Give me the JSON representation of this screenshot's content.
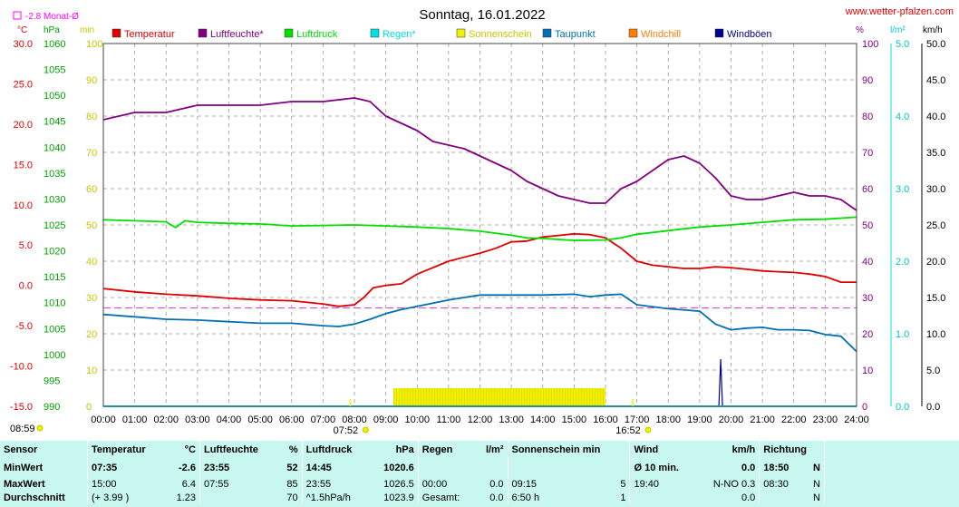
{
  "header": {
    "title": "Sonntag, 16.01.2022",
    "site": "www.wetter-pfalzen.com",
    "monthly_avg_legend": "-2.8 Monat-Ø"
  },
  "units": {
    "temp": "°C",
    "pressure": "hPa",
    "sun": "min",
    "humidity": "%",
    "rain": "l/m²",
    "wind": "km/h"
  },
  "legend": [
    {
      "name": "Temperatur",
      "color": "#e00000"
    },
    {
      "name": "Luftfeuchte*",
      "color": "#800080"
    },
    {
      "name": "Luftdruck",
      "color": "#00e000"
    },
    {
      "name": "Regen*",
      "color": "#00e0e0"
    },
    {
      "name": "Sonnenschein",
      "color": "#f0f000"
    },
    {
      "name": "Taupunkt",
      "color": "#0070b0"
    },
    {
      "name": "Windchill",
      "color": "#ff8000"
    },
    {
      "name": "Windböen",
      "color": "#000090"
    }
  ],
  "chart_data": {
    "type": "line",
    "title": "Sonntag, 16.01.2022",
    "x_ticks": [
      "00:00",
      "01:00",
      "02:00",
      "03:00",
      "04:00",
      "05:00",
      "06:00",
      "07:00",
      "08:00",
      "09:00",
      "10:00",
      "11:00",
      "12:00",
      "13:00",
      "14:00",
      "15:00",
      "16:00",
      "17:00",
      "18:00",
      "19:00",
      "20:00",
      "21:00",
      "22:00",
      "23:00",
      "24:00"
    ],
    "axes": {
      "temp": {
        "label": "°C",
        "min": -15,
        "max": 30,
        "ticks": [
          "30.0",
          "25.0",
          "20.0",
          "15.0",
          "10.0",
          "5.0",
          "0.0",
          "-5.0",
          "-10.0",
          "-15.0"
        ]
      },
      "pressure": {
        "label": "hPa",
        "min": 990,
        "max": 1060,
        "ticks": [
          "1060",
          "1055",
          "1050",
          "1045",
          "1040",
          "1035",
          "1030",
          "1025",
          "1020",
          "1015",
          "1010",
          "1005",
          "1000",
          "995",
          "990"
        ]
      },
      "sun": {
        "label": "min",
        "min": 0,
        "max": 100,
        "ticks": [
          "100",
          "90",
          "80",
          "70",
          "60",
          "50",
          "40",
          "30",
          "20",
          "10",
          "0"
        ]
      },
      "humidity": {
        "label": "%",
        "min": 0,
        "max": 100,
        "ticks": [
          "100",
          "90",
          "80",
          "70",
          "60",
          "50",
          "40",
          "30",
          "20",
          "10",
          "0"
        ]
      },
      "rain": {
        "label": "l/m²",
        "min": 0,
        "max": 5,
        "ticks": [
          "5.0",
          "4.0",
          "3.0",
          "2.0",
          "1.0",
          "0.0"
        ]
      },
      "wind": {
        "label": "km/h",
        "min": 0,
        "max": 50,
        "ticks": [
          "50.0",
          "45.0",
          "40.0",
          "35.0",
          "30.0",
          "25.0",
          "20.0",
          "15.0",
          "10.0",
          "5.0",
          "0.0"
        ]
      }
    },
    "monthly_avg_temp": -2.8,
    "sunrise": "07:52",
    "sunset": "16:52",
    "day_length": "08:59",
    "series": [
      {
        "name": "Temperatur",
        "axis": "temp",
        "color": "#e00000",
        "x": [
          0,
          1,
          2,
          3,
          4,
          5,
          6,
          7,
          7.5,
          8,
          8.3,
          8.6,
          9,
          9.5,
          10,
          11,
          12,
          12.5,
          13,
          13.5,
          14,
          14.5,
          15,
          15.5,
          16,
          16.5,
          17,
          17.5,
          18,
          18.5,
          19,
          19.5,
          20,
          20.5,
          21,
          21.5,
          22,
          22.5,
          23,
          23.5,
          24
        ],
        "y": [
          -0.4,
          -0.8,
          -1.1,
          -1.3,
          -1.6,
          -1.8,
          -1.9,
          -2.3,
          -2.6,
          -2.4,
          -1.5,
          -0.3,
          0.0,
          0.2,
          1.4,
          3.0,
          4.0,
          4.6,
          5.4,
          5.5,
          6.0,
          6.2,
          6.4,
          6.3,
          5.9,
          4.6,
          3.0,
          2.5,
          2.3,
          2.1,
          2.1,
          2.3,
          2.2,
          2.0,
          1.8,
          1.7,
          1.6,
          1.4,
          1.1,
          0.4,
          0.4
        ]
      },
      {
        "name": "Luftfeuchte*",
        "axis": "humidity",
        "color": "#800080",
        "x": [
          0,
          0.5,
          1,
          2,
          3,
          4,
          5,
          6,
          7,
          8,
          8.5,
          9,
          9.5,
          10,
          10.5,
          11,
          11.5,
          12,
          12.5,
          13,
          13.5,
          14,
          14.5,
          15,
          15.5,
          16,
          16.5,
          17,
          17.5,
          18,
          18.5,
          19,
          19.5,
          20,
          20.5,
          21,
          21.5,
          22,
          22.5,
          23,
          23.5,
          24
        ],
        "y": [
          79,
          80,
          81,
          81,
          83,
          83,
          83,
          84,
          84,
          85,
          84,
          80,
          78,
          76,
          73,
          72,
          71,
          69,
          67,
          65,
          62,
          60,
          58,
          57,
          56,
          56,
          60,
          62,
          65,
          68,
          69,
          67,
          63,
          58,
          57,
          57,
          58,
          59,
          58,
          58,
          57,
          54
        ]
      },
      {
        "name": "Luftdruck",
        "axis": "pressure",
        "color": "#00e000",
        "x": [
          0,
          1,
          2,
          2.3,
          2.6,
          3,
          4,
          5,
          6,
          7,
          8,
          9,
          10,
          11,
          12,
          13,
          13.5,
          14,
          15,
          16,
          16.5,
          17,
          18,
          19,
          20,
          21,
          22,
          23,
          24
        ],
        "y": [
          1026.0,
          1025.8,
          1025.6,
          1024.5,
          1025.8,
          1025.5,
          1025.3,
          1025.2,
          1024.8,
          1024.9,
          1025.0,
          1024.8,
          1024.6,
          1024.3,
          1023.8,
          1023.0,
          1022.5,
          1022.4,
          1022.0,
          1022.1,
          1022.5,
          1023.2,
          1023.9,
          1024.6,
          1025.0,
          1025.5,
          1026.0,
          1026.1,
          1026.5
        ]
      },
      {
        "name": "Taupunkt",
        "axis": "temp",
        "color": "#0070b0",
        "x": [
          0,
          1,
          2,
          3,
          4,
          5,
          6,
          7,
          7.5,
          8,
          8.5,
          9,
          9.5,
          10,
          10.5,
          11,
          11.5,
          12,
          13,
          14,
          15,
          15.5,
          16,
          16.5,
          17,
          18,
          19,
          19.5,
          20,
          20.5,
          21,
          21.5,
          22,
          22.5,
          23,
          23.5,
          24
        ],
        "y": [
          -3.6,
          -3.9,
          -4.2,
          -4.3,
          -4.5,
          -4.7,
          -4.7,
          -5.0,
          -5.1,
          -4.8,
          -4.2,
          -3.5,
          -3.0,
          -2.6,
          -2.2,
          -1.8,
          -1.5,
          -1.2,
          -1.2,
          -1.2,
          -1.1,
          -1.4,
          -1.2,
          -1.1,
          -2.4,
          -2.9,
          -3.2,
          -4.8,
          -5.5,
          -5.3,
          -5.2,
          -5.5,
          -5.5,
          -5.6,
          -6.1,
          -6.3,
          -8.2
        ]
      },
      {
        "name": "Sonnenschein",
        "axis": "sun",
        "color": "#f0f000",
        "type": "bar",
        "x": [
          9.25,
          16.0
        ],
        "y": [
          5,
          5
        ]
      },
      {
        "name": "Windböen",
        "axis": "wind",
        "color": "#000090",
        "type": "bar",
        "x": [
          19.67
        ],
        "y": [
          6.5
        ]
      },
      {
        "name": "Regen*",
        "axis": "rain",
        "color": "#00e0e0",
        "x": [
          0,
          24
        ],
        "y": [
          0,
          0
        ]
      }
    ]
  },
  "stats": {
    "header": {
      "sensor": "Sensor",
      "temp": "Temperatur",
      "temp_unit": "°C",
      "hum": "Luftfeuchte",
      "hum_unit": "%",
      "press": "Luftdruck",
      "press_unit": "hPa",
      "rain": "Regen",
      "rain_unit": "l/m²",
      "sun": "Sonnenschein min",
      "wind": "Wind",
      "wind_unit": "km/h",
      "dir": "Richtung"
    },
    "rows": [
      {
        "label": "MinWert",
        "t_time": "07:35",
        "t_val": "-2.6",
        "h_time": "23:55",
        "h_val": "52",
        "p_time": "14:45",
        "p_val": "1020.6",
        "r_time": "",
        "r_val": "",
        "s_time": "",
        "s_val": "",
        "w_time": "Ø 10 min.",
        "w_val": "0.0",
        "d_time": "18:50",
        "d_val": "N"
      },
      {
        "label": "MaxWert",
        "t_time": "15:00",
        "t_val": "6.4",
        "h_time": "07:55",
        "h_val": "85",
        "p_time": "23:55",
        "p_val": "1026.5",
        "r_time": "00:00",
        "r_val": "0.0",
        "s_time": "09:15",
        "s_val": "5",
        "w_time": "19:40",
        "w_val": "N-NO 0.3",
        "d_time": "08:30",
        "d_val": "N"
      },
      {
        "label": "Durchschnitt",
        "t_time": "(+ 3.99 )",
        "t_val": "1.23",
        "h_time": "",
        "h_val": "70",
        "p_time": "^1.5hPa/h",
        "p_val": "1023.9",
        "r_time": "Gesamt:",
        "r_val": "0.0",
        "s_time": "6:50 h",
        "s_val": "1",
        "w_time": "",
        "w_val": "0.0",
        "d_time": "",
        "d_val": "N"
      }
    ]
  }
}
